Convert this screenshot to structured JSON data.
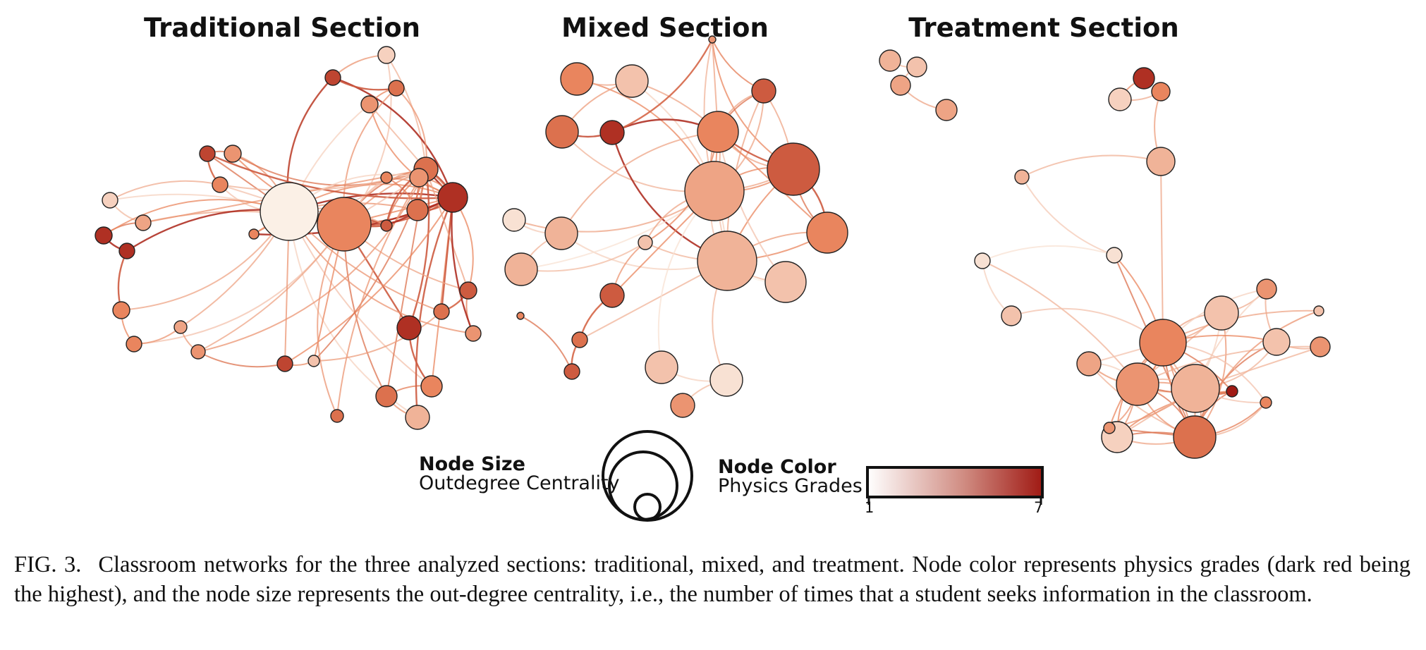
{
  "panels": [
    {
      "title": "Traditional Section"
    },
    {
      "title": "Mixed Section"
    },
    {
      "title": "Treatment Section"
    }
  ],
  "legend": {
    "size_title": "Node Size",
    "size_subtitle": "Outdegree Centrality",
    "color_title": "Node Color",
    "color_subtitle": "Physics Grades",
    "color_min": "1",
    "color_max": "7",
    "color_low": "#fbf0e6",
    "color_high": "#a01a14"
  },
  "caption": {
    "label": "FIG. 3.",
    "text": "Classroom networks for the three analyzed sections: traditional, mixed, and treatment. Node color represents physics grades (dark red being the highest), and the node size represents the out-degree centrality, i.e., the number of times that a student seeks information in the classroom."
  }
}
